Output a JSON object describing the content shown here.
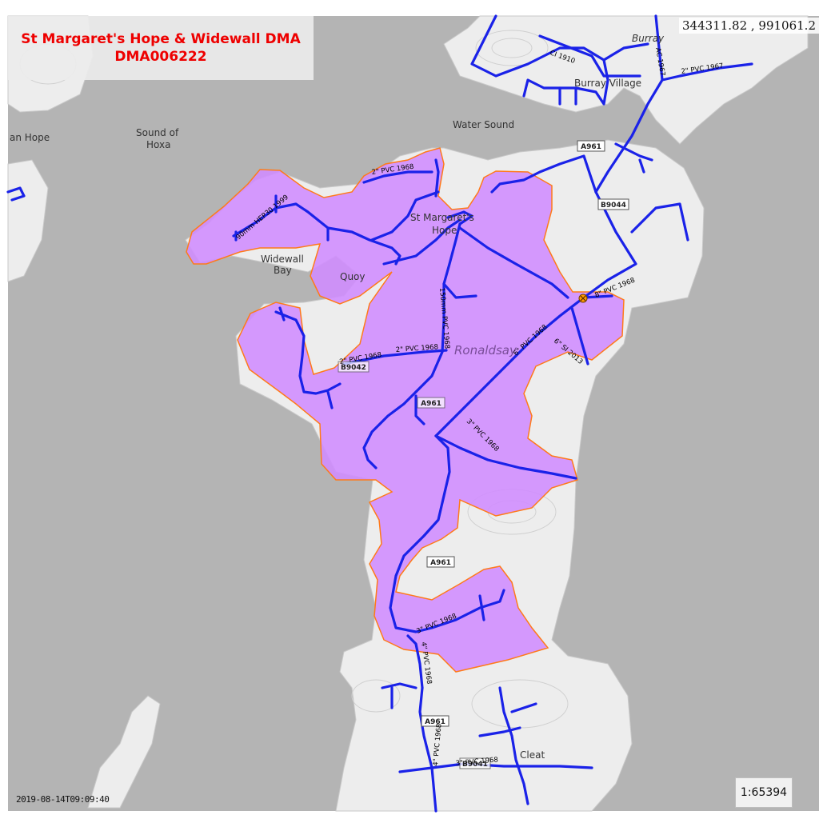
{
  "title": {
    "line1": "St Margaret's Hope & Widewall DMA",
    "line2": "DMA006222"
  },
  "coordinates": "344311.82 , 991061.2",
  "timestamp": "2019-08-14T09:09:40",
  "scale": "1:65394",
  "colors": {
    "sea": "#b4b4b4",
    "land": "#ededed",
    "dma_fill": "#d08cff",
    "dma_border": "#ff7a1a",
    "pipe": "#1a22e8",
    "title_text": "#ee0000"
  },
  "places": {
    "burray": "Burray",
    "burray_village": "Burray Village",
    "water_sound": "Water Sound",
    "sound_of_hoxa_1": "Sound of",
    "sound_of_hoxa_2": "Hoxa",
    "hope_left": "an Hope",
    "widewall_bay_1": "Widewall",
    "widewall_bay_2": "Bay",
    "st_margarets_hope_1": "St Margaret's",
    "st_margarets_hope_2": "Hope",
    "ronaldsay": "Ronaldsay",
    "cleat": "Cleat",
    "quoy": "Quoy"
  },
  "roads": {
    "a961_top": "A961",
    "b9044": "B9044",
    "b9042": "B9042",
    "a961_mid": "A961",
    "a961_low": "A961",
    "a961_bottom": "A961",
    "b9041": "B9041"
  },
  "pipe_labels": {
    "ci_1910": "CI 1910",
    "ac_1967": "AC 1967",
    "pvc_2in_1967": "2\" PVC 1967",
    "pvc_2in_1968_top": "2\" PVC 1968",
    "hep_90mm_1999": "90mm HEP30 1999",
    "pvc_150mm_1968": "150mm PVC 1968",
    "pvc_2in_1968_mid": "2\" PVC 1968",
    "pvc_2in_1968_left": "2\" PVC 1968",
    "pvc_6in_1968": "6\" PVC 1968",
    "pvc_8in_1968": "8\" PVC 1968",
    "si_6in_2013": "6\" SI 2013",
    "pvc_3in_1968_mid": "3\" PVC 1968",
    "pvc_3in_1968_low": "3\" PVC 1968",
    "pvc_4in_1968_low": "4\" PVC 1968",
    "pvc_4in_1968_bottom": "4\" PVC 1968",
    "pvc_3in_1968_bottom": "3\" PVC 1968"
  }
}
